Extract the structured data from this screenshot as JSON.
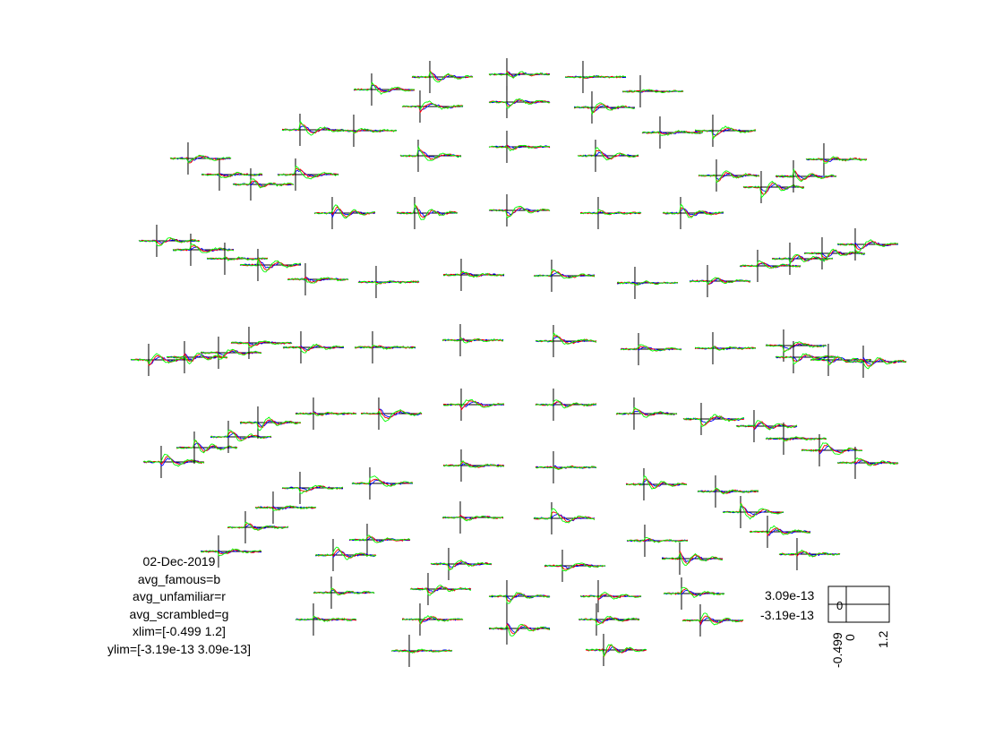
{
  "chart_data": {
    "type": "line",
    "layout": "multiplot topographic sensor layout",
    "date": "02-Dec-2019",
    "series": [
      {
        "name": "avg_famous",
        "color": "#0000ff"
      },
      {
        "name": "avg_unfamiliar",
        "color": "#ff0000"
      },
      {
        "name": "avg_scrambled",
        "color": "#00ff00"
      }
    ],
    "legend_lines": [
      "avg_famous=b",
      "avg_unfamiliar=r",
      "avg_scrambled=g"
    ],
    "xlim": [
      -0.499,
      1.2
    ],
    "ylim": [
      -3.19e-13,
      3.09e-13
    ],
    "xlim_text": "xlim=[-0.499 1.2]",
    "ylim_text": "ylim=[-3.19e-13 3.09e-13]",
    "scale": {
      "y_max_label": "3.09e-13",
      "y_zero_label": "0",
      "y_min_label": "-3.19e-13",
      "x_min_label": "-0.499",
      "x_zero_label": "0",
      "x_max_label": "1.2"
    },
    "sensor_count": 102,
    "grid": false
  }
}
